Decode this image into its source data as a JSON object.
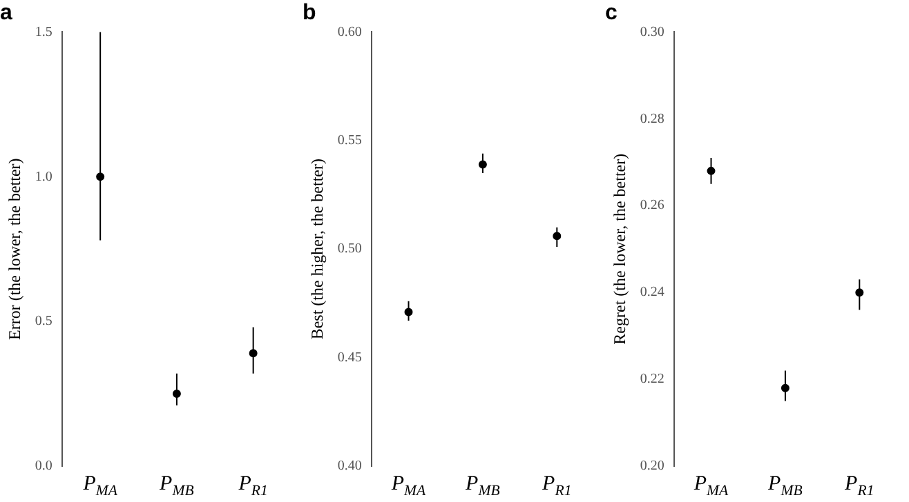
{
  "chart_data": [
    {
      "type": "scatter",
      "title": "a",
      "ylabel": "Error (the lower, the better)",
      "categories": [
        "P$_{MA}$",
        "P$_{MB}$",
        "P$_{R1}$"
      ],
      "series": [
        {
          "color": "#000000",
          "values": [
            1.0,
            0.25,
            0.39
          ],
          "errors": [
            [
              0.78,
              1.5
            ],
            [
              0.21,
              0.32
            ],
            [
              0.32,
              0.48
            ]
          ]
        }
      ],
      "ylim": [
        0,
        1.5
      ],
      "yticks": [
        {
          "value": 0,
          "label": "0.0"
        },
        0.5,
        {
          "value": 1,
          "label": "1.0"
        },
        1.5
      ],
      "grid": false,
      "legend": false,
      "marker": "circle"
    },
    {
      "type": "scatter",
      "title": "b",
      "ylabel": "Best (the higher, the better)",
      "categories": [
        "P$_{MA}$",
        "P$_{MB}$",
        "P$_{R1}$"
      ],
      "series": [
        {
          "color": "#000000",
          "values": [
            0.471,
            0.539,
            0.506
          ],
          "errors": [
            [
              0.467,
              0.476
            ],
            [
              0.535,
              0.544
            ],
            [
              0.501,
              0.51
            ]
          ]
        }
      ],
      "ylim": [
        0.4,
        0.6
      ],
      "yticks": [
        {
          "value": 0.4,
          "label": "0.40"
        },
        0.45,
        {
          "value": 0.5,
          "label": "0.50"
        },
        0.55,
        {
          "value": 0.6,
          "label": "0.60"
        }
      ],
      "grid": false,
      "legend": false,
      "marker": "circle"
    },
    {
      "type": "scatter",
      "title": "c",
      "ylabel": "Regret (the lower, the better)",
      "categories": [
        "P$_{MA}$",
        "P$_{MB}$",
        "P$_{R1}$"
      ],
      "series": [
        {
          "color": "#000000",
          "values": [
            0.268,
            0.218,
            0.24
          ],
          "errors": [
            [
              0.265,
              0.271
            ],
            [
              0.215,
              0.222
            ],
            [
              0.236,
              0.243
            ]
          ]
        }
      ],
      "ylim": [
        0.2,
        0.3
      ],
      "yticks": [
        {
          "value": 0.2,
          "label": "0.20"
        },
        0.22,
        0.24,
        0.26,
        0.28,
        {
          "value": 0.3,
          "label": "0.30"
        }
      ],
      "grid": false,
      "legend": false,
      "marker": "circle"
    }
  ]
}
